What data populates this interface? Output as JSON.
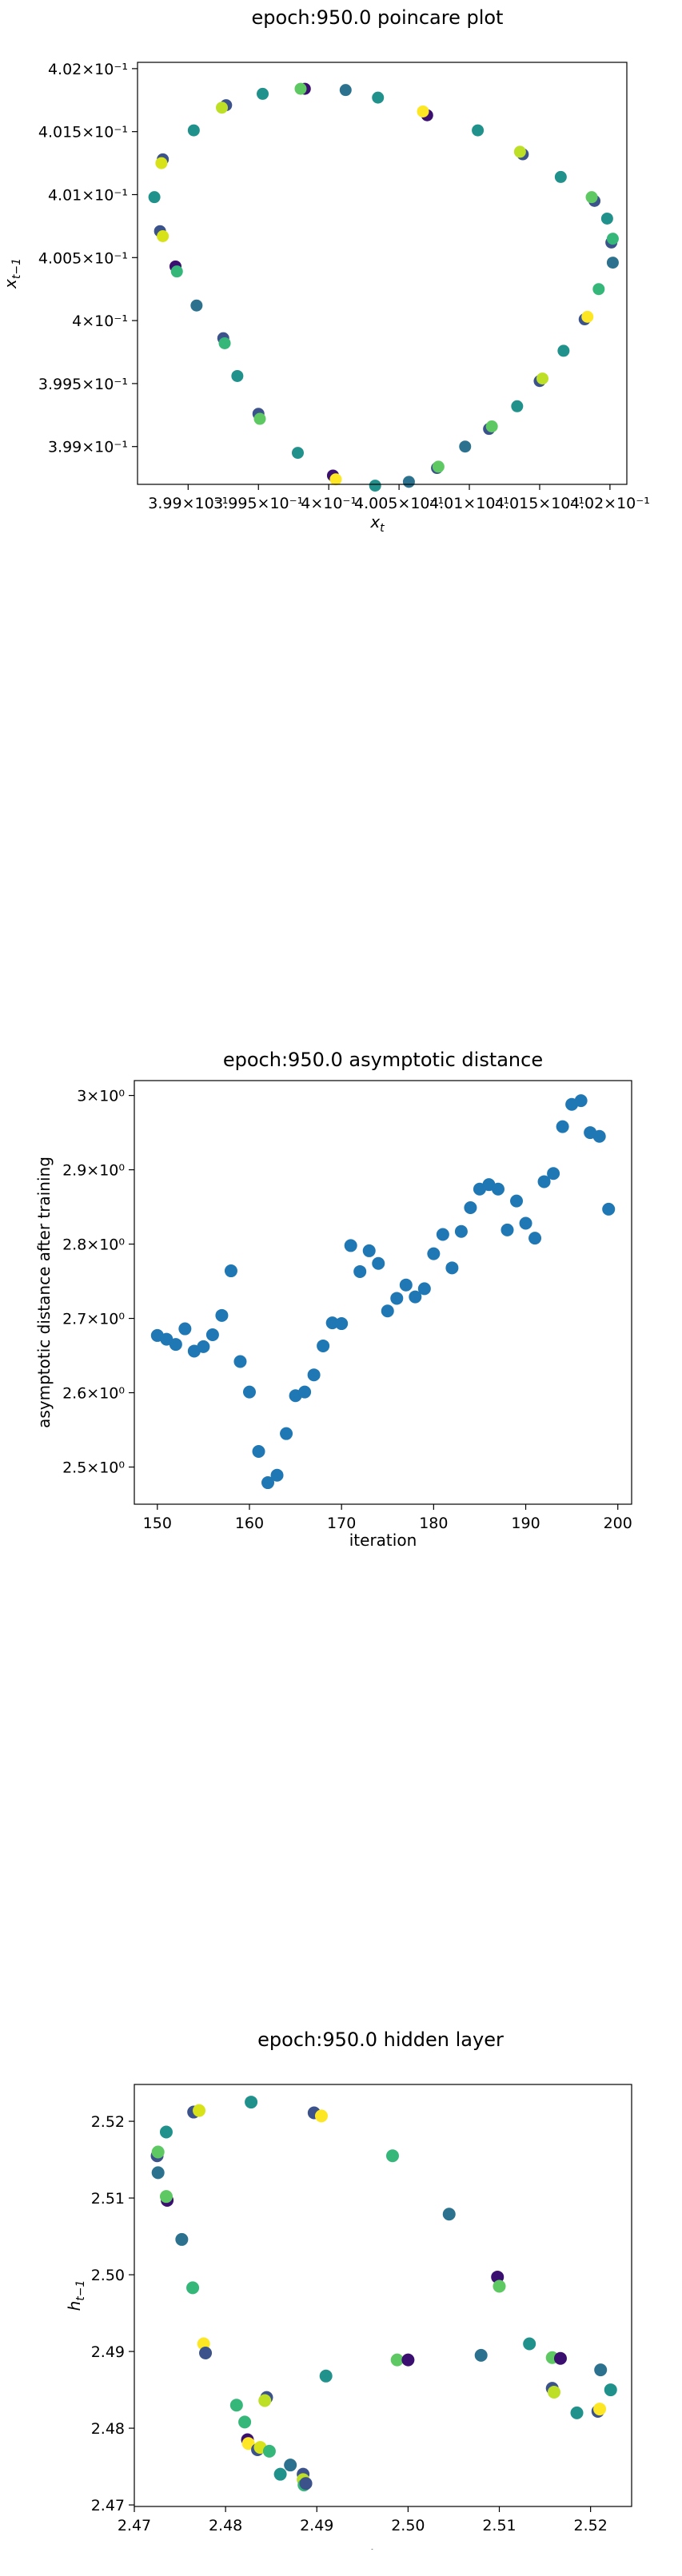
{
  "chart_data": [
    {
      "type": "scatter",
      "title": "epoch:950.0 poincare plot",
      "xlabel": "x_t",
      "ylabel": "x_{t-1}",
      "xlim": [
        0.39864,
        0.40212
      ],
      "ylim": [
        0.3987,
        0.40205
      ],
      "scale": "log",
      "xticks": [
        0.399,
        0.3995,
        0.4,
        0.4005,
        0.401,
        0.4015,
        0.402
      ],
      "xtick_labels": [
        "3.99×10⁻¹",
        "3.995×10⁻¹",
        "4×10⁻¹",
        "4.005×10⁻¹",
        "4.01×10⁻¹",
        "4.015×10⁻¹",
        "4.02×10⁻¹"
      ],
      "yticks": [
        0.399,
        0.3995,
        0.4,
        0.4005,
        0.401,
        0.4015,
        0.402
      ],
      "ytick_labels": [
        "3.99×10⁻¹",
        "3.995×10⁻¹",
        "4×10⁻¹",
        "4.005×10⁻¹",
        "4.01×10⁻¹",
        "4.015×10⁻¹",
        "4.02×10⁻¹"
      ],
      "points": [
        {
          "x": 0.39876,
          "y": 0.40098,
          "c": "#21918c"
        },
        {
          "x": 0.39882,
          "y": 0.40128,
          "c": "#3b528b"
        },
        {
          "x": 0.39881,
          "y": 0.40125,
          "c": "#d8e219"
        },
        {
          "x": 0.39904,
          "y": 0.40151,
          "c": "#21918c"
        },
        {
          "x": 0.3988,
          "y": 0.40071,
          "c": "#3b528b"
        },
        {
          "x": 0.39882,
          "y": 0.40067,
          "c": "#d8e219"
        },
        {
          "x": 0.39891,
          "y": 0.40043,
          "c": "#3b0f70"
        },
        {
          "x": 0.39892,
          "y": 0.40039,
          "c": "#35b779"
        },
        {
          "x": 0.39906,
          "y": 0.40012,
          "c": "#2c728e"
        },
        {
          "x": 0.39925,
          "y": 0.39986,
          "c": "#3b528b"
        },
        {
          "x": 0.39926,
          "y": 0.39982,
          "c": "#35b779"
        },
        {
          "x": 0.39935,
          "y": 0.39956,
          "c": "#21918c"
        },
        {
          "x": 0.3995,
          "y": 0.39926,
          "c": "#3b528b"
        },
        {
          "x": 0.39951,
          "y": 0.39922,
          "c": "#5ec962"
        },
        {
          "x": 0.39978,
          "y": 0.39895,
          "c": "#21918c"
        },
        {
          "x": 0.40003,
          "y": 0.39877,
          "c": "#3b0f70"
        },
        {
          "x": 0.40005,
          "y": 0.39874,
          "c": "#fde725"
        },
        {
          "x": 0.40033,
          "y": 0.39869,
          "c": "#21918c"
        },
        {
          "x": 0.40057,
          "y": 0.39872,
          "c": "#2c728e"
        },
        {
          "x": 0.40077,
          "y": 0.39883,
          "c": "#3b528b"
        },
        {
          "x": 0.40078,
          "y": 0.39884,
          "c": "#5ec962"
        },
        {
          "x": 0.40097,
          "y": 0.399,
          "c": "#2c728e"
        },
        {
          "x": 0.40114,
          "y": 0.39914,
          "c": "#3b528b"
        },
        {
          "x": 0.40116,
          "y": 0.39916,
          "c": "#5ec962"
        },
        {
          "x": 0.40134,
          "y": 0.39932,
          "c": "#21918c"
        },
        {
          "x": 0.4015,
          "y": 0.39952,
          "c": "#3b528b"
        },
        {
          "x": 0.40152,
          "y": 0.39954,
          "c": "#bddf26"
        },
        {
          "x": 0.40167,
          "y": 0.39976,
          "c": "#21918c"
        },
        {
          "x": 0.40182,
          "y": 0.40001,
          "c": "#3b528b"
        },
        {
          "x": 0.40184,
          "y": 0.40003,
          "c": "#fde725"
        },
        {
          "x": 0.40192,
          "y": 0.40025,
          "c": "#35b779"
        },
        {
          "x": 0.40202,
          "y": 0.40046,
          "c": "#2c728e"
        },
        {
          "x": 0.40201,
          "y": 0.40062,
          "c": "#3b528b"
        },
        {
          "x": 0.40202,
          "y": 0.40065,
          "c": "#35b779"
        },
        {
          "x": 0.40198,
          "y": 0.40081,
          "c": "#21918c"
        },
        {
          "x": 0.40189,
          "y": 0.40095,
          "c": "#3b528b"
        },
        {
          "x": 0.40187,
          "y": 0.40098,
          "c": "#5ec962"
        },
        {
          "x": 0.40165,
          "y": 0.40114,
          "c": "#21918c"
        },
        {
          "x": 0.40138,
          "y": 0.40132,
          "c": "#3b528b"
        },
        {
          "x": 0.40136,
          "y": 0.40134,
          "c": "#bddf26"
        },
        {
          "x": 0.40106,
          "y": 0.40151,
          "c": "#21918c"
        },
        {
          "x": 0.4007,
          "y": 0.40163,
          "c": "#3b0f70"
        },
        {
          "x": 0.40067,
          "y": 0.40166,
          "c": "#fde725"
        },
        {
          "x": 0.40035,
          "y": 0.40177,
          "c": "#21918c"
        },
        {
          "x": 0.40012,
          "y": 0.40183,
          "c": "#2c728e"
        },
        {
          "x": 0.39983,
          "y": 0.40184,
          "c": "#3b0f70"
        },
        {
          "x": 0.3998,
          "y": 0.40184,
          "c": "#5ec962"
        },
        {
          "x": 0.39953,
          "y": 0.4018,
          "c": "#21918c"
        },
        {
          "x": 0.39927,
          "y": 0.40171,
          "c": "#3b528b"
        },
        {
          "x": 0.39924,
          "y": 0.40169,
          "c": "#bddf26"
        }
      ]
    },
    {
      "type": "scatter",
      "title": "epoch:950.0 asymptotic distance",
      "xlabel": "iteration",
      "ylabel": "asymptotic distance after training",
      "xlim": [
        147.5,
        201.5
      ],
      "ylim": [
        2.45,
        3.02
      ],
      "scale": "log-y",
      "xticks": [
        150,
        160,
        170,
        180,
        190,
        200
      ],
      "yticks": [
        2.5,
        2.6,
        2.7,
        2.8,
        2.9,
        3.0
      ],
      "ytick_labels": [
        "2.5×10⁰",
        "2.6×10⁰",
        "2.7×10⁰",
        "2.8×10⁰",
        "2.9×10⁰",
        "3×10⁰"
      ],
      "color": "#1f77b4",
      "x": [
        150,
        151,
        152,
        153,
        154,
        155,
        156,
        157,
        158,
        159,
        160,
        161,
        162,
        163,
        164,
        165,
        166,
        167,
        168,
        169,
        170,
        171,
        172,
        173,
        174,
        175,
        176,
        177,
        178,
        179,
        180,
        181,
        182,
        183,
        184,
        185,
        186,
        187,
        188,
        189,
        190,
        191,
        192,
        193,
        194,
        195,
        196,
        197,
        198,
        199
      ],
      "y": [
        2.677,
        2.672,
        2.665,
        2.686,
        2.656,
        2.662,
        2.678,
        2.704,
        2.764,
        2.642,
        2.601,
        2.521,
        2.479,
        2.489,
        2.545,
        2.596,
        2.601,
        2.624,
        2.663,
        2.694,
        2.693,
        2.798,
        2.763,
        2.791,
        2.774,
        2.71,
        2.727,
        2.745,
        2.729,
        2.74,
        2.787,
        2.813,
        2.768,
        2.817,
        2.849,
        2.874,
        2.88,
        2.874,
        2.819,
        2.858,
        2.828,
        2.808,
        2.884,
        2.895,
        2.958,
        2.988,
        2.993,
        2.95,
        2.945,
        2.847
      ]
    },
    {
      "type": "scatter",
      "title": "epoch:950.0 hidden layer",
      "xlabel": "h_t",
      "ylabel": "h_{t-1}",
      "xlim": [
        2.47,
        2.5245
      ],
      "ylim": [
        2.4698,
        2.5248
      ],
      "xticks": [
        2.47,
        2.48,
        2.49,
        2.5,
        2.51,
        2.52
      ],
      "xtick_labels": [
        "2.47",
        "2.48",
        "2.49",
        "2.50",
        "2.51",
        "2.52"
      ],
      "yticks": [
        2.47,
        2.48,
        2.49,
        2.5,
        2.51,
        2.52
      ],
      "ytick_labels": [
        "2.47",
        "2.48",
        "2.49",
        "2.50",
        "2.51",
        "2.52"
      ],
      "points": [
        {
          "x": 2.4725,
          "y": 2.5155,
          "c": "#3b528b"
        },
        {
          "x": 2.4726,
          "y": 2.516,
          "c": "#5ec962"
        },
        {
          "x": 2.4726,
          "y": 2.5133,
          "c": "#2c728e"
        },
        {
          "x": 2.4735,
          "y": 2.5186,
          "c": "#21918c"
        },
        {
          "x": 2.4736,
          "y": 2.5097,
          "c": "#3b0f70"
        },
        {
          "x": 2.4735,
          "y": 2.5102,
          "c": "#5ec962"
        },
        {
          "x": 2.4752,
          "y": 2.5046,
          "c": "#2c728e"
        },
        {
          "x": 2.4765,
          "y": 2.5212,
          "c": "#3b528b"
        },
        {
          "x": 2.4771,
          "y": 2.5214,
          "c": "#d8e219"
        },
        {
          "x": 2.4764,
          "y": 2.4983,
          "c": "#35b779"
        },
        {
          "x": 2.4776,
          "y": 2.491,
          "c": "#fde725"
        },
        {
          "x": 2.4778,
          "y": 2.4898,
          "c": "#3b528b"
        },
        {
          "x": 2.4828,
          "y": 2.5225,
          "c": "#21918c"
        },
        {
          "x": 2.4812,
          "y": 2.483,
          "c": "#35b779"
        },
        {
          "x": 2.4845,
          "y": 2.484,
          "c": "#3b528b"
        },
        {
          "x": 2.4843,
          "y": 2.4836,
          "c": "#bddf26"
        },
        {
          "x": 2.4821,
          "y": 2.4808,
          "c": "#35b779"
        },
        {
          "x": 2.4824,
          "y": 2.4785,
          "c": "#3b0f70"
        },
        {
          "x": 2.4825,
          "y": 2.478,
          "c": "#fde725"
        },
        {
          "x": 2.4835,
          "y": 2.4772,
          "c": "#3b528b"
        },
        {
          "x": 2.4838,
          "y": 2.4775,
          "c": "#d8e219"
        },
        {
          "x": 2.4848,
          "y": 2.477,
          "c": "#35b779"
        },
        {
          "x": 2.486,
          "y": 2.474,
          "c": "#21918c"
        },
        {
          "x": 2.4871,
          "y": 2.4752,
          "c": "#2c728e"
        },
        {
          "x": 2.4885,
          "y": 2.474,
          "c": "#3b528b"
        },
        {
          "x": 2.4885,
          "y": 2.4733,
          "c": "#bddf26"
        },
        {
          "x": 2.4886,
          "y": 2.4726,
          "c": "#35b779"
        },
        {
          "x": 2.4888,
          "y": 2.4728,
          "c": "#3b528b"
        },
        {
          "x": 2.4897,
          "y": 2.5211,
          "c": "#3b528b"
        },
        {
          "x": 2.4905,
          "y": 2.5207,
          "c": "#fde725"
        },
        {
          "x": 2.491,
          "y": 2.4868,
          "c": "#21918c"
        },
        {
          "x": 2.4983,
          "y": 2.5155,
          "c": "#35b779"
        },
        {
          "x": 2.4988,
          "y": 2.4889,
          "c": "#5ec962"
        },
        {
          "x": 2.5,
          "y": 2.4889,
          "c": "#3b0f70"
        },
        {
          "x": 2.5045,
          "y": 2.5079,
          "c": "#2c728e"
        },
        {
          "x": 2.508,
          "y": 2.4895,
          "c": "#2c728e"
        },
        {
          "x": 2.5098,
          "y": 2.4997,
          "c": "#3b0f70"
        },
        {
          "x": 2.51,
          "y": 2.4985,
          "c": "#5ec962"
        },
        {
          "x": 2.5133,
          "y": 2.491,
          "c": "#21918c"
        },
        {
          "x": 2.5158,
          "y": 2.4852,
          "c": "#3b528b"
        },
        {
          "x": 2.5158,
          "y": 2.4892,
          "c": "#5ec962"
        },
        {
          "x": 2.516,
          "y": 2.4847,
          "c": "#bddf26"
        },
        {
          "x": 2.5167,
          "y": 2.4891,
          "c": "#3b0f70"
        },
        {
          "x": 2.5185,
          "y": 2.482,
          "c": "#21918c"
        },
        {
          "x": 2.5208,
          "y": 2.4822,
          "c": "#3b528b"
        },
        {
          "x": 2.521,
          "y": 2.4825,
          "c": "#fde725"
        },
        {
          "x": 2.5211,
          "y": 2.4876,
          "c": "#2c728e"
        },
        {
          "x": 2.5222,
          "y": 2.485,
          "c": "#21918c"
        }
      ]
    }
  ]
}
